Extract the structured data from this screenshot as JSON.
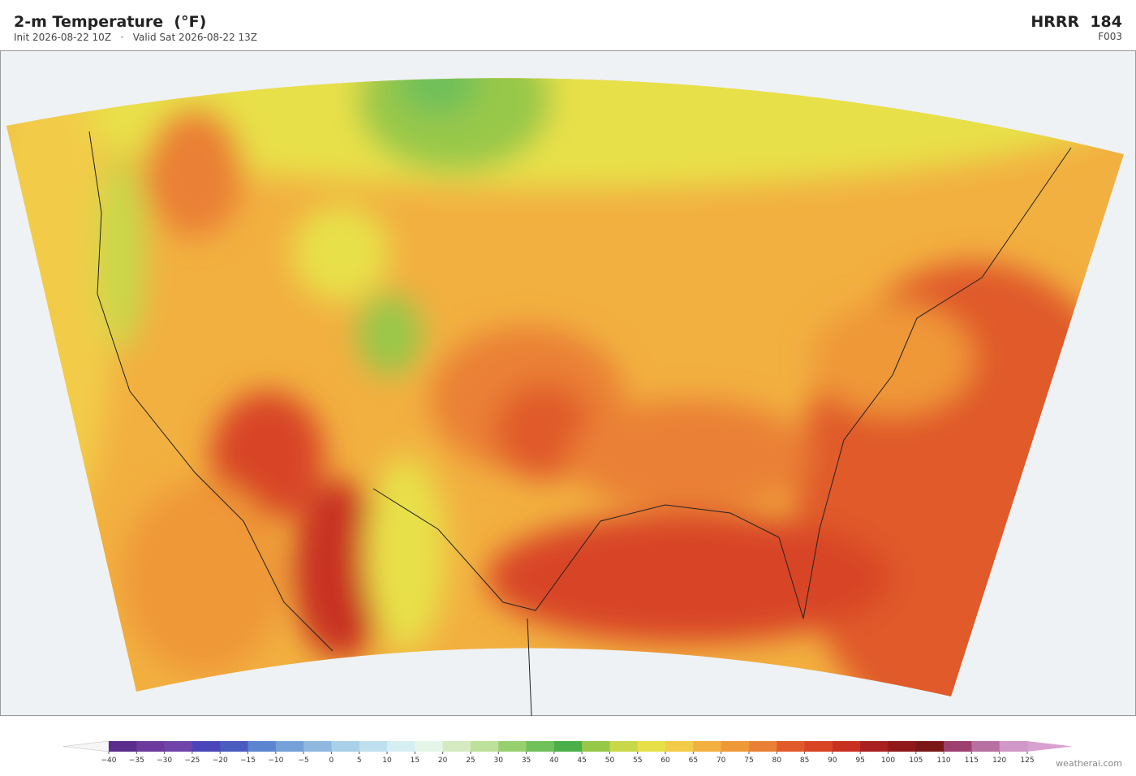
{
  "header": {
    "title": "2-m Temperature  (°F)",
    "subtitle": "Init 2026-08-22 10Z   ·   Valid Sat 2026-08-22 13Z",
    "model": "HRRR  184",
    "forecast_hour": "F003"
  },
  "colorbar": {
    "ticks": [
      {
        "value": -40,
        "label": "−40"
      },
      {
        "value": -35,
        "label": "−35"
      },
      {
        "value": -30,
        "label": "−30"
      },
      {
        "value": -25,
        "label": "−25"
      },
      {
        "value": -20,
        "label": "−20"
      },
      {
        "value": -15,
        "label": "−15"
      },
      {
        "value": -10,
        "label": "−10"
      },
      {
        "value": -5,
        "label": "−5"
      },
      0,
      5,
      10,
      15,
      20,
      25,
      30,
      35,
      40,
      45,
      50,
      55,
      60,
      65,
      70,
      75,
      80,
      85,
      90,
      95,
      100,
      105,
      110,
      115,
      120,
      125
    ],
    "colors": [
      "#5a2d8c",
      "#6b3a9c",
      "#6f45aa",
      "#4a45b8",
      "#4a5cc0",
      "#5b85d0",
      "#75a0d8",
      "#8fb7e0",
      "#a8d0e8",
      "#bfe0ee",
      "#d5eef2",
      "#e5f5e8",
      "#d5eac0",
      "#bfe09a",
      "#98d070",
      "#70c05a",
      "#4aaf48",
      "#98c848",
      "#c8d848",
      "#e8e048",
      "#f2cc48",
      "#f2b040",
      "#ef9838",
      "#ea8035",
      "#e05a2a",
      "#d84525",
      "#c83020",
      "#a82020",
      "#901818",
      "#7a1818",
      "#9c4070",
      "#b870a0",
      "#d098c8"
    ],
    "under_color": "#f6f6f6",
    "over_color": "#d8a0d0"
  },
  "credit": "weatherai.com"
}
